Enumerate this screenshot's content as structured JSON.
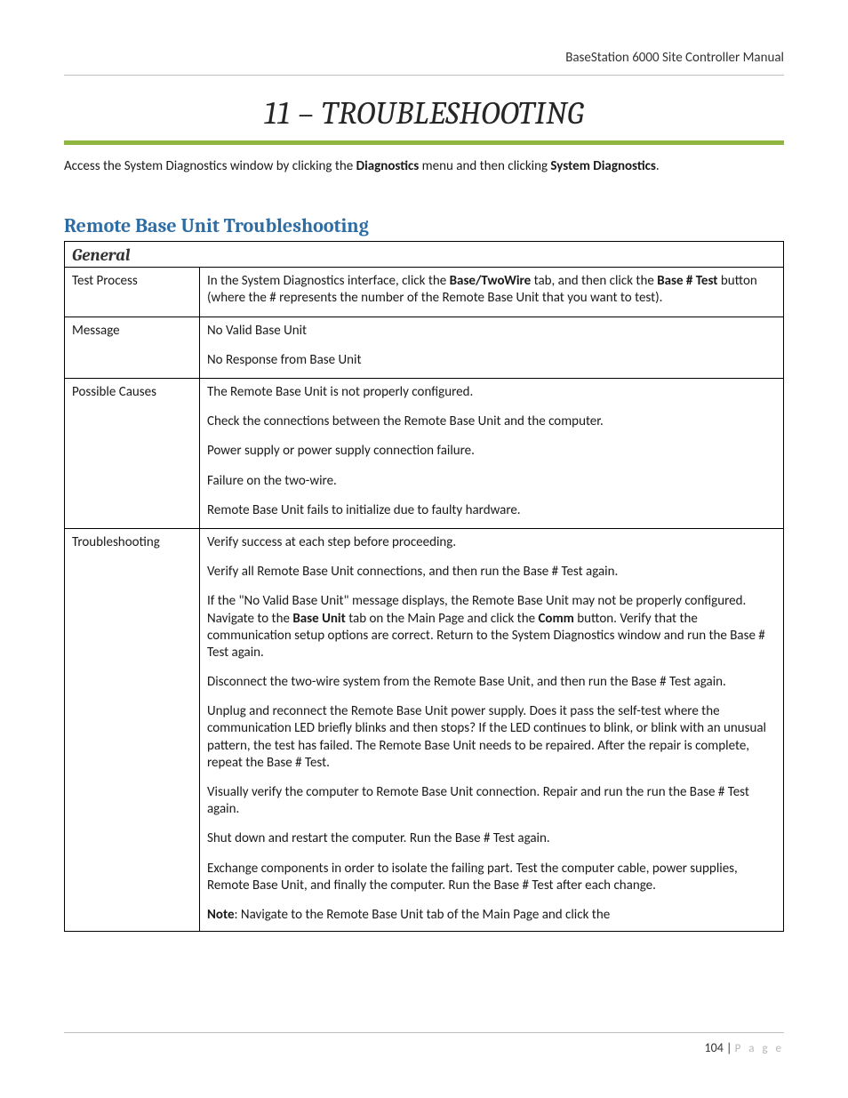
{
  "header": {
    "doc_title": "BaseStation 6000 Site Controller Manual"
  },
  "chapter": {
    "title": "11 – TROUBLESHOOTING"
  },
  "intro": {
    "pre": "Access the System Diagnostics window by clicking the ",
    "b1": "Diagnostics",
    "mid": " menu and then clicking ",
    "b2": "System Diagnostics",
    "post": "."
  },
  "section": {
    "title": "Remote Base Unit Troubleshooting"
  },
  "table": {
    "group": "General",
    "rows": {
      "test_process": {
        "label": "Test Process",
        "p1_pre": "In the System Diagnostics interface, click the ",
        "p1_b1": "Base/TwoWire",
        "p1_mid": " tab, and then click the ",
        "p1_b2": "Base # Test",
        "p1_post": " button (where the # represents the number of the Remote Base Unit that you want to test)."
      },
      "message": {
        "label": "Message",
        "p1": "No Valid Base Unit",
        "p2": "No Response from Base Unit"
      },
      "causes": {
        "label": "Possible Causes",
        "p1": "The Remote Base Unit is not properly configured.",
        "p2": "Check the connections between the Remote Base Unit and the computer.",
        "p3": "Power supply or power supply connection failure.",
        "p4": "Failure on the two-wire.",
        "p5": "Remote Base Unit fails to initialize due to faulty hardware."
      },
      "troubleshooting": {
        "label": "Troubleshooting",
        "p1": "Verify success at each step before proceeding.",
        "p2": "Verify all Remote Base Unit connections, and then run the Base # Test again.",
        "p3_pre": "If the \"No Valid Base Unit\" message displays, the Remote Base Unit may not be properly configured. Navigate to the ",
        "p3_b1": "Base Unit",
        "p3_mid": " tab on the Main Page and click the ",
        "p3_b2": "Comm",
        "p3_post": " button. Verify that the communication setup options are correct. Return to the System Diagnostics window and run the Base # Test again.",
        "p4": "Disconnect the two-wire system from the Remote Base Unit, and then run the Base # Test again.",
        "p5": "Unplug and reconnect the Remote Base Unit power supply. Does it pass the self-test where the communication LED briefly blinks and then stops?  If the LED continues to blink, or blink with an unusual pattern, the test has failed. The Remote Base Unit needs to be repaired. After the repair is complete, repeat the Base # Test.",
        "p6": "Visually verify the computer to Remote Base Unit connection. Repair and run the run the Base # Test again.",
        "p7": "Shut down and restart the computer. Run the Base # Test again.",
        "p8": "Exchange components in order to isolate the failing part. Test the computer cable, power supplies, Remote Base Unit, and finally the computer. Run the Base # Test after each change.",
        "p9_b": "Note",
        "p9_post": ": Navigate to the Remote Base Unit tab of the Main Page and click the"
      }
    }
  },
  "footer": {
    "page_num": "104",
    "page_label": "P a g e"
  },
  "colors": {
    "accent_green": "#8fb63f",
    "heading_blue": "#2e6da4",
    "rule_gray": "#bfbfbf",
    "footer_gray": "#b7b7b7"
  }
}
